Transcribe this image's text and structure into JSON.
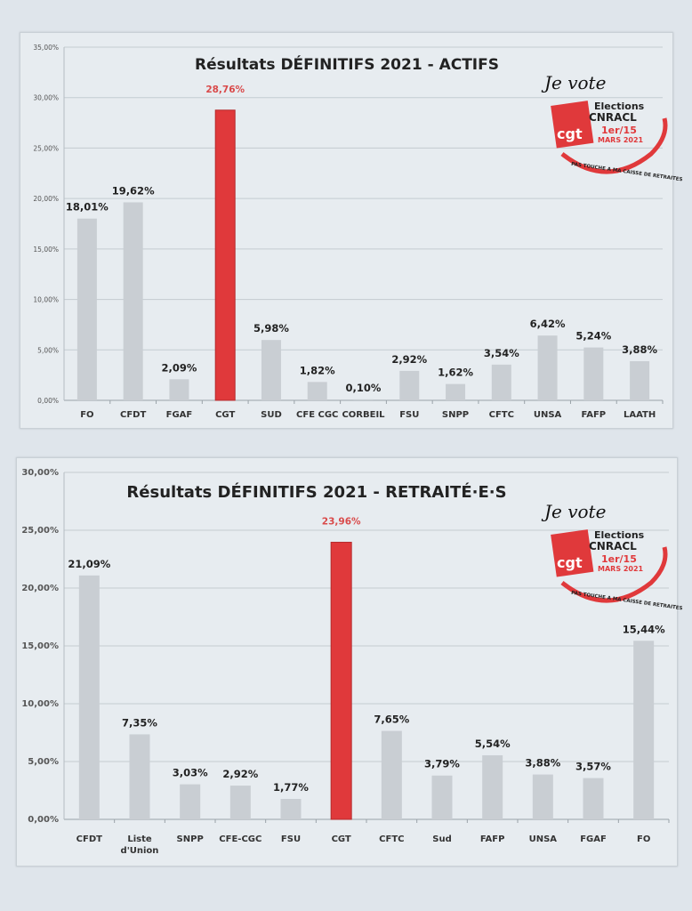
{
  "logo": {
    "text_top": "Je vote",
    "text_elections": "Elections",
    "text_cnracl": "CNRACL",
    "text_dates": "1er/15",
    "text_month": "MARS 2021",
    "text_cgt": "cgt",
    "text_ring": "PAS TOUCHE A MA CAISSE DE RETRAITES"
  },
  "colors": {
    "highlight": "#e0393b",
    "bar": "#c9ced3",
    "highlight_label": "#d94a4a"
  },
  "chart_data": [
    {
      "type": "bar",
      "title": "Résultats DÉFINITIFS 2021 - ACTIFS",
      "categories": [
        "FO",
        "CFDT",
        "FGAF",
        "CGT",
        "SUD",
        "CFE CGC",
        "CORBEIL",
        "FSU",
        "SNPP",
        "CFTC",
        "UNSA",
        "FAFP",
        "LAATH"
      ],
      "values": [
        18.01,
        19.62,
        2.09,
        28.76,
        5.98,
        1.82,
        0.1,
        2.92,
        1.62,
        3.54,
        6.42,
        5.24,
        3.88
      ],
      "value_labels": [
        "18,01%",
        "19,62%",
        "2,09%",
        "28,76%",
        "5,98%",
        "1,82%",
        "0,10%",
        "2,92%",
        "1,62%",
        "3,54%",
        "6,42%",
        "5,24%",
        "3,88%"
      ],
      "highlight": "CGT",
      "ylim": [
        0,
        35
      ],
      "yticks": [
        "0,00%",
        "5,00%",
        "10,00%",
        "15,00%",
        "20,00%",
        "25,00%",
        "30,00%",
        "35,00%"
      ],
      "grid": true,
      "xlabel": "",
      "ylabel": ""
    },
    {
      "type": "bar",
      "title": "Résultats DÉFINITIFS 2021 - RETRAITÉ·E·S",
      "categories": [
        "CFDT",
        "Liste d'Union",
        "SNPP",
        "CFE-CGC",
        "FSU",
        "CGT",
        "CFTC",
        "Sud",
        "FAFP",
        "UNSA",
        "FGAF",
        "FO"
      ],
      "values": [
        21.09,
        7.35,
        3.03,
        2.92,
        1.77,
        23.96,
        7.65,
        3.79,
        5.54,
        3.88,
        3.57,
        15.44
      ],
      "value_labels": [
        "21,09%",
        "7,35%",
        "3,03%",
        "2,92%",
        "1,77%",
        "23,96%",
        "7,65%",
        "3,79%",
        "5,54%",
        "3,88%",
        "3,57%",
        "15,44%"
      ],
      "highlight": "CGT",
      "ylim": [
        0,
        30
      ],
      "yticks": [
        "0,00%",
        "5,00%",
        "10,00%",
        "15,00%",
        "20,00%",
        "25,00%",
        "30,00%"
      ],
      "grid": true,
      "xlabel": "",
      "ylabel": ""
    }
  ]
}
